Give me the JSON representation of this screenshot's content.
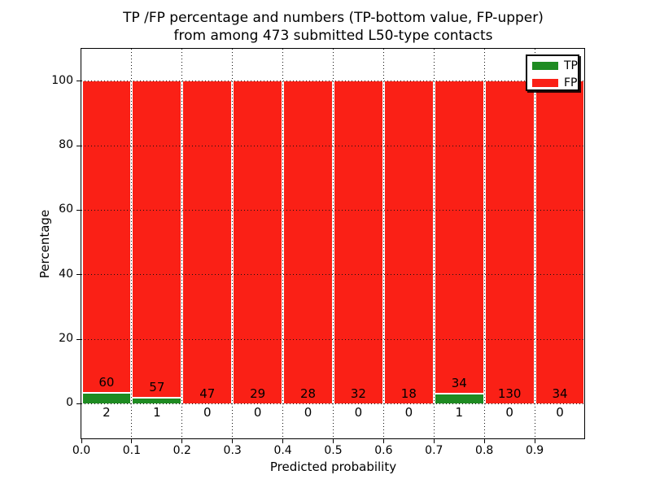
{
  "figure": {
    "title_line1": "TP /FP percentage and numbers (TP-bottom value, FP-upper)",
    "title_line2": "from among 473 submitted L50-type contacts"
  },
  "chart_data": {
    "type": "bar",
    "stacked": true,
    "note": "Each bin is normalized to 100%: green TP share on bottom, red FP share on top. Printed numbers are raw counts (TP below axis, FP above).",
    "title": "TP /FP percentage and numbers (TP-bottom value, FP-upper) from among 473 submitted L50-type contacts",
    "xlabel": "Predicted probability",
    "ylabel": "Percentage",
    "bin_edges": [
      0.0,
      0.1,
      0.2,
      0.3,
      0.4,
      0.5,
      0.6,
      0.7,
      0.8,
      0.9,
      1.0
    ],
    "series": [
      {
        "name": "TP",
        "color": "#1e8b22",
        "counts": [
          2,
          1,
          0,
          0,
          0,
          0,
          0,
          1,
          0,
          0
        ]
      },
      {
        "name": "FP",
        "color": "#fa2016",
        "counts": [
          60,
          57,
          47,
          29,
          28,
          32,
          18,
          34,
          130,
          34
        ]
      }
    ],
    "x_tick_labels": [
      "0.0",
      "0.1",
      "0.2",
      "0.3",
      "0.4",
      "0.5",
      "0.6",
      "0.7",
      "0.8",
      "0.9"
    ],
    "y_ticks": [
      0,
      20,
      40,
      60,
      80,
      100
    ],
    "xlim": [
      0,
      1
    ],
    "ylim": [
      -11,
      110
    ],
    "grid": {
      "style": "dotted",
      "color": "#111111"
    },
    "legend": {
      "position": "upper right",
      "entries": [
        "TP",
        "FP"
      ]
    }
  }
}
